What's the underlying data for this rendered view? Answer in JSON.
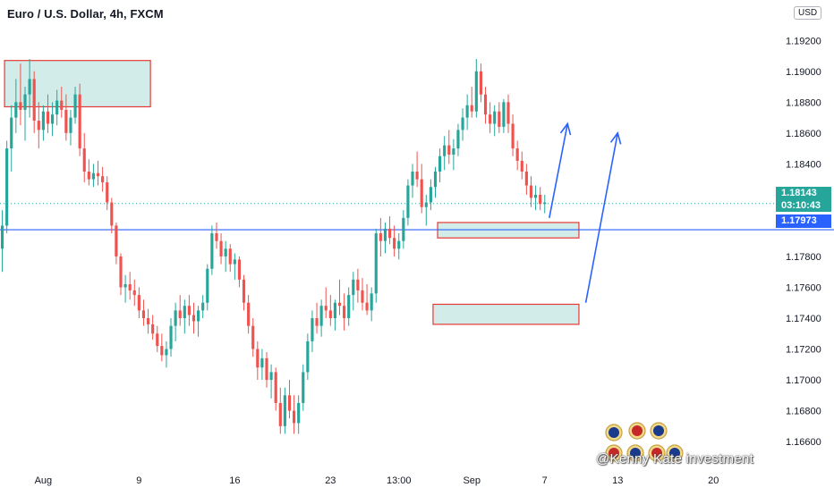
{
  "header": {
    "symbol_title": "Euro / U.S. Dollar, 4h, FXCM",
    "currency": "USD"
  },
  "price_tags": {
    "last_price": "1.18143",
    "countdown": "03:10:43",
    "line_price": "1.17973"
  },
  "watermark": {
    "text": "@Kenny Kate investment"
  },
  "colors": {
    "up_candle": "#26a69a",
    "down_candle": "#ef5350",
    "zone_fill": "#b2dfdb",
    "zone_border": "#e53935",
    "horizontal_line": "#2962ff",
    "arrow": "#2962ff"
  },
  "chart_data": {
    "type": "candlestick",
    "symbol": "Euro / U.S. Dollar",
    "timeframe": "4h",
    "source": "FXCM",
    "y_axis": {
      "range": [
        1.1645,
        1.193
      ],
      "ticks": [
        "1.19200",
        "1.19000",
        "1.18800",
        "1.18600",
        "1.18400",
        "1.18200",
        "1.17800",
        "1.17600",
        "1.17400",
        "1.17200",
        "1.17000",
        "1.16800",
        "1.16600"
      ],
      "tick_values": [
        1.192,
        1.19,
        1.188,
        1.186,
        1.184,
        1.182,
        1.178,
        1.176,
        1.174,
        1.172,
        1.17,
        1.168,
        1.166
      ]
    },
    "x_axis": {
      "ticks": [
        "Aug",
        "9",
        "16",
        "23",
        "13:00",
        "Sep",
        "7",
        "13",
        "20"
      ],
      "tick_bars": [
        9,
        30,
        51,
        72,
        87,
        103,
        119,
        135,
        156
      ]
    },
    "bar_count": 170,
    "last_price": 1.18143,
    "horizontal_line": 1.17973,
    "candles": [
      [
        1.1785,
        1.181,
        1.177,
        1.18
      ],
      [
        1.18,
        1.1855,
        1.1795,
        1.185
      ],
      [
        1.185,
        1.1878,
        1.1835,
        1.187
      ],
      [
        1.187,
        1.1895,
        1.186,
        1.188
      ],
      [
        1.188,
        1.1905,
        1.1865,
        1.1875
      ],
      [
        1.1875,
        1.189,
        1.1855,
        1.1885
      ],
      [
        1.1885,
        1.1908,
        1.187,
        1.1895
      ],
      [
        1.1895,
        1.19,
        1.186,
        1.1868
      ],
      [
        1.1868,
        1.188,
        1.185,
        1.1862
      ],
      [
        1.1862,
        1.1878,
        1.1855,
        1.1874
      ],
      [
        1.1874,
        1.1885,
        1.186,
        1.1866
      ],
      [
        1.1866,
        1.188,
        1.1858,
        1.1872
      ],
      [
        1.1872,
        1.1888,
        1.1865,
        1.1881
      ],
      [
        1.1881,
        1.189,
        1.187,
        1.1875
      ],
      [
        1.1875,
        1.1885,
        1.1855,
        1.186
      ],
      [
        1.186,
        1.1875,
        1.1852,
        1.187
      ],
      [
        1.187,
        1.189,
        1.1866,
        1.1885
      ],
      [
        1.1885,
        1.1892,
        1.1845,
        1.185
      ],
      [
        1.185,
        1.186,
        1.1828,
        1.1835
      ],
      [
        1.1835,
        1.1843,
        1.1826,
        1.183
      ],
      [
        1.183,
        1.184,
        1.1825,
        1.1834
      ],
      [
        1.1834,
        1.1842,
        1.1826,
        1.1832
      ],
      [
        1.1832,
        1.1838,
        1.1822,
        1.1828
      ],
      [
        1.1828,
        1.1832,
        1.181,
        1.1815
      ],
      [
        1.1815,
        1.1818,
        1.1795,
        1.18
      ],
      [
        1.18,
        1.1802,
        1.1775,
        1.178
      ],
      [
        1.178,
        1.1782,
        1.1755,
        1.176
      ],
      [
        1.176,
        1.1768,
        1.175,
        1.1762
      ],
      [
        1.1762,
        1.177,
        1.1752,
        1.1758
      ],
      [
        1.1758,
        1.1765,
        1.1748,
        1.1755
      ],
      [
        1.1755,
        1.176,
        1.174,
        1.1745
      ],
      [
        1.1745,
        1.1752,
        1.1735,
        1.174
      ],
      [
        1.174,
        1.1746,
        1.173,
        1.1736
      ],
      [
        1.1736,
        1.1742,
        1.1726,
        1.173
      ],
      [
        1.173,
        1.1735,
        1.1718,
        1.1722
      ],
      [
        1.1722,
        1.173,
        1.1712,
        1.1716
      ],
      [
        1.1716,
        1.1725,
        1.1708,
        1.172
      ],
      [
        1.172,
        1.174,
        1.1715,
        1.1735
      ],
      [
        1.1735,
        1.175,
        1.1725,
        1.1745
      ],
      [
        1.1745,
        1.1755,
        1.1735,
        1.174
      ],
      [
        1.174,
        1.1752,
        1.173,
        1.1748
      ],
      [
        1.1748,
        1.1755,
        1.1735,
        1.1742
      ],
      [
        1.1742,
        1.175,
        1.173,
        1.1738
      ],
      [
        1.1738,
        1.1748,
        1.1728,
        1.1745
      ],
      [
        1.1745,
        1.1755,
        1.174,
        1.175
      ],
      [
        1.175,
        1.1775,
        1.1745,
        1.1772
      ],
      [
        1.1772,
        1.18,
        1.1768,
        1.1795
      ],
      [
        1.1795,
        1.1802,
        1.1785,
        1.179
      ],
      [
        1.179,
        1.1795,
        1.1775,
        1.178
      ],
      [
        1.178,
        1.179,
        1.177,
        1.1785
      ],
      [
        1.1785,
        1.1788,
        1.177,
        1.1775
      ],
      [
        1.1775,
        1.1782,
        1.1765,
        1.1778
      ],
      [
        1.1778,
        1.178,
        1.176,
        1.1765
      ],
      [
        1.1765,
        1.1768,
        1.1745,
        1.175
      ],
      [
        1.175,
        1.1755,
        1.173,
        1.1735
      ],
      [
        1.1735,
        1.174,
        1.1715,
        1.172
      ],
      [
        1.172,
        1.1725,
        1.17,
        1.1708
      ],
      [
        1.1708,
        1.172,
        1.17,
        1.1714
      ],
      [
        1.1714,
        1.1718,
        1.1695,
        1.17
      ],
      [
        1.17,
        1.171,
        1.1688,
        1.1705
      ],
      [
        1.1705,
        1.1708,
        1.168,
        1.1685
      ],
      [
        1.1685,
        1.1695,
        1.1665,
        1.167
      ],
      [
        1.167,
        1.1695,
        1.1665,
        1.169
      ],
      [
        1.169,
        1.17,
        1.1675,
        1.168
      ],
      [
        1.168,
        1.169,
        1.1665,
        1.1672
      ],
      [
        1.1672,
        1.169,
        1.1665,
        1.1685
      ],
      [
        1.1685,
        1.171,
        1.168,
        1.1705
      ],
      [
        1.1705,
        1.173,
        1.17,
        1.1725
      ],
      [
        1.1725,
        1.1745,
        1.1718,
        1.174
      ],
      [
        1.174,
        1.175,
        1.173,
        1.1735
      ],
      [
        1.1735,
        1.1752,
        1.1728,
        1.1748
      ],
      [
        1.1748,
        1.176,
        1.174,
        1.1745
      ],
      [
        1.1745,
        1.1755,
        1.1735,
        1.174
      ],
      [
        1.174,
        1.1752,
        1.1732,
        1.175
      ],
      [
        1.175,
        1.1765,
        1.1742,
        1.1748
      ],
      [
        1.1748,
        1.1756,
        1.1732,
        1.174
      ],
      [
        1.174,
        1.176,
        1.1735,
        1.1755
      ],
      [
        1.1755,
        1.177,
        1.1745,
        1.1765
      ],
      [
        1.1765,
        1.1772,
        1.175,
        1.1758
      ],
      [
        1.1758,
        1.1766,
        1.1745,
        1.175
      ],
      [
        1.175,
        1.1762,
        1.1742,
        1.1745
      ],
      [
        1.1745,
        1.176,
        1.1738,
        1.1756
      ],
      [
        1.1756,
        1.1798,
        1.175,
        1.1795
      ],
      [
        1.1795,
        1.1805,
        1.178,
        1.179
      ],
      [
        1.179,
        1.1802,
        1.1782,
        1.1798
      ],
      [
        1.1798,
        1.1806,
        1.1788,
        1.1792
      ],
      [
        1.1792,
        1.18,
        1.178,
        1.1785
      ],
      [
        1.1785,
        1.1795,
        1.1778,
        1.179
      ],
      [
        1.179,
        1.181,
        1.1785,
        1.1805
      ],
      [
        1.1805,
        1.183,
        1.18,
        1.1826
      ],
      [
        1.1826,
        1.184,
        1.1818,
        1.1835
      ],
      [
        1.1835,
        1.1848,
        1.1825,
        1.183
      ],
      [
        1.183,
        1.184,
        1.1808,
        1.1812
      ],
      [
        1.1812,
        1.182,
        1.18,
        1.1815
      ],
      [
        1.1815,
        1.183,
        1.181,
        1.1825
      ],
      [
        1.1825,
        1.1838,
        1.1818,
        1.1835
      ],
      [
        1.1835,
        1.185,
        1.1828,
        1.1845
      ],
      [
        1.1845,
        1.1858,
        1.1836,
        1.1852
      ],
      [
        1.1852,
        1.1862,
        1.184,
        1.1846
      ],
      [
        1.1846,
        1.1856,
        1.1836,
        1.185
      ],
      [
        1.185,
        1.1866,
        1.1845,
        1.1862
      ],
      [
        1.1862,
        1.1876,
        1.1855,
        1.187
      ],
      [
        1.187,
        1.1885,
        1.1862,
        1.1878
      ],
      [
        1.1878,
        1.189,
        1.187,
        1.1874
      ],
      [
        1.1874,
        1.1908,
        1.187,
        1.19
      ],
      [
        1.19,
        1.1905,
        1.188,
        1.1885
      ],
      [
        1.1885,
        1.189,
        1.1866,
        1.1872
      ],
      [
        1.1872,
        1.188,
        1.186,
        1.1866
      ],
      [
        1.1866,
        1.1878,
        1.1858,
        1.1874
      ],
      [
        1.1874,
        1.188,
        1.186,
        1.1864
      ],
      [
        1.1864,
        1.1882,
        1.186,
        1.188
      ],
      [
        1.188,
        1.1885,
        1.186,
        1.1866
      ],
      [
        1.1866,
        1.1872,
        1.1845,
        1.185
      ],
      [
        1.185,
        1.1855,
        1.1836,
        1.1842
      ],
      [
        1.1842,
        1.1848,
        1.183,
        1.1835
      ],
      [
        1.1835,
        1.184,
        1.182,
        1.1826
      ],
      [
        1.1826,
        1.1832,
        1.1812,
        1.1818
      ],
      [
        1.1818,
        1.1826,
        1.181,
        1.182
      ],
      [
        1.182,
        1.1825,
        1.181,
        1.1814
      ],
      [
        1.1814,
        1.182,
        1.1808,
        1.1815
      ]
    ],
    "zones": [
      {
        "x_range": [
          1,
          32
        ],
        "price_range": [
          1.1877,
          1.1907
        ]
      },
      {
        "x_range": [
          96,
          126
        ],
        "price_range": [
          1.1792,
          1.1802
        ]
      },
      {
        "x_range": [
          95,
          126
        ],
        "price_range": [
          1.1736,
          1.1749
        ]
      }
    ],
    "arrows": [
      {
        "from": [
          120,
          1.1805
        ],
        "to": [
          124,
          1.1866
        ]
      },
      {
        "from": [
          128,
          1.175
        ],
        "to": [
          135,
          1.186
        ]
      }
    ]
  }
}
